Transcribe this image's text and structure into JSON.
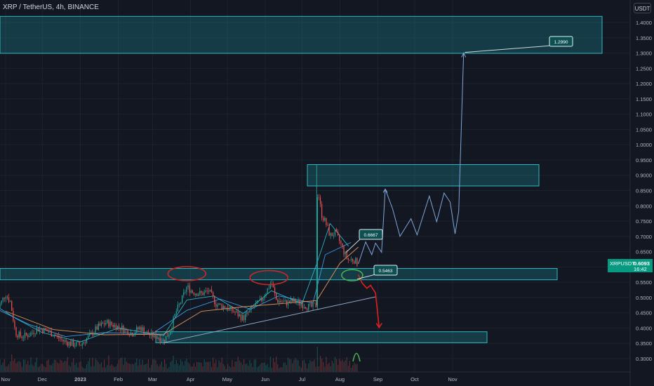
{
  "header": {
    "title": "XRP / TetherUS, 4h, BINANCE",
    "unit": "USDT"
  },
  "price_tag": {
    "symbol": "XRPUSDT",
    "value": "0.6093",
    "countdown": "16:42"
  },
  "colors": {
    "background": "#131722",
    "zone_fill": "#1b8a92",
    "zone_stroke": "#2fb8c2",
    "candle_up": "#26a69a",
    "candle_down": "#ef5350",
    "projection_up": "#7fa7d9",
    "projection_down": "#e02020",
    "circle_red": "#c62828",
    "circle_green": "#4caf50",
    "label_fill": "#0e4f52"
  },
  "chart_data": {
    "type": "line",
    "symbol": "XRP / TetherUS",
    "timeframe": "4h",
    "exchange": "BINANCE",
    "x_labels": [
      "Nov",
      "Dec",
      "2023",
      "Feb",
      "Mar",
      "Apr",
      "May",
      "Jun",
      "Jul",
      "Aug",
      "Sep",
      "Oct",
      "Nov"
    ],
    "y_ticks": [
      "1.4000",
      "1.3500",
      "1.3000",
      "1.2500",
      "1.2000",
      "1.1500",
      "1.1000",
      "1.0500",
      "1.0000",
      "0.9500",
      "0.9000",
      "0.8500",
      "0.8000",
      "0.7500",
      "0.7000",
      "0.6500",
      "0.6000",
      "0.5500",
      "0.5000",
      "0.4500",
      "0.4000",
      "0.3500",
      "0.3000"
    ],
    "y_range": [
      0.29,
      1.44
    ],
    "annotations": [
      "0.6667",
      "0.5463",
      "1.2990"
    ],
    "zones": [
      {
        "from": 1.299,
        "to": 1.42,
        "start": "Nov",
        "end": "Oct"
      },
      {
        "from": 0.865,
        "to": 0.935,
        "start": "Jul",
        "end": "Sep"
      },
      {
        "from": 0.558,
        "to": 0.595,
        "start": "Nov",
        "end": "Sep"
      },
      {
        "from": 0.352,
        "to": 0.388,
        "start": "Mar",
        "end": "Sep"
      }
    ],
    "price_series": [
      {
        "date": "2022-10-25",
        "close": 0.458
      },
      {
        "date": "2022-11-01",
        "close": 0.512
      },
      {
        "date": "2022-11-05",
        "close": 0.485
      },
      {
        "date": "2022-11-09",
        "close": 0.385
      },
      {
        "date": "2022-11-14",
        "close": 0.372
      },
      {
        "date": "2022-11-20",
        "close": 0.378
      },
      {
        "date": "2022-11-27",
        "close": 0.398
      },
      {
        "date": "2022-12-04",
        "close": 0.392
      },
      {
        "date": "2022-12-11",
        "close": 0.378
      },
      {
        "date": "2022-12-18",
        "close": 0.358
      },
      {
        "date": "2022-12-25",
        "close": 0.348
      },
      {
        "date": "2023-01-01",
        "close": 0.345
      },
      {
        "date": "2023-01-08",
        "close": 0.372
      },
      {
        "date": "2023-01-15",
        "close": 0.402
      },
      {
        "date": "2023-01-22",
        "close": 0.418
      },
      {
        "date": "2023-01-29",
        "close": 0.408
      },
      {
        "date": "2023-02-05",
        "close": 0.398
      },
      {
        "date": "2023-02-12",
        "close": 0.382
      },
      {
        "date": "2023-02-19",
        "close": 0.402
      },
      {
        "date": "2023-02-26",
        "close": 0.378
      },
      {
        "date": "2023-03-05",
        "close": 0.372
      },
      {
        "date": "2023-03-10",
        "close": 0.358
      },
      {
        "date": "2023-03-15",
        "close": 0.388
      },
      {
        "date": "2023-03-20",
        "close": 0.452
      },
      {
        "date": "2023-03-24",
        "close": 0.485
      },
      {
        "date": "2023-03-29",
        "close": 0.535
      },
      {
        "date": "2023-04-03",
        "close": 0.518
      },
      {
        "date": "2023-04-10",
        "close": 0.512
      },
      {
        "date": "2023-04-16",
        "close": 0.522
      },
      {
        "date": "2023-04-22",
        "close": 0.478
      },
      {
        "date": "2023-04-30",
        "close": 0.468
      },
      {
        "date": "2023-05-07",
        "close": 0.452
      },
      {
        "date": "2023-05-14",
        "close": 0.432
      },
      {
        "date": "2023-05-21",
        "close": 0.462
      },
      {
        "date": "2023-05-28",
        "close": 0.488
      },
      {
        "date": "2023-06-03",
        "close": 0.528
      },
      {
        "date": "2023-06-06",
        "close": 0.552
      },
      {
        "date": "2023-06-10",
        "close": 0.492
      },
      {
        "date": "2023-06-17",
        "close": 0.482
      },
      {
        "date": "2023-06-24",
        "close": 0.488
      },
      {
        "date": "2023-07-01",
        "close": 0.478
      },
      {
        "date": "2023-07-08",
        "close": 0.468
      },
      {
        "date": "2023-07-13",
        "close": 0.475
      },
      {
        "date": "2023-07-13",
        "close": 0.812
      },
      {
        "date": "2023-07-14",
        "close": 0.852
      },
      {
        "date": "2023-07-17",
        "close": 0.772
      },
      {
        "date": "2023-07-20",
        "close": 0.748
      },
      {
        "date": "2023-07-24",
        "close": 0.702
      },
      {
        "date": "2023-07-28",
        "close": 0.712
      },
      {
        "date": "2023-08-01",
        "close": 0.682
      },
      {
        "date": "2023-08-05",
        "close": 0.642
      },
      {
        "date": "2023-08-08",
        "close": 0.622
      },
      {
        "date": "2023-08-12",
        "close": 0.625
      },
      {
        "date": "2023-08-16",
        "close": 0.6093
      }
    ],
    "projection_up": [
      {
        "date": "2023-08-16",
        "value": 0.61
      },
      {
        "date": "2023-08-22",
        "value": 0.682
      },
      {
        "date": "2023-08-27",
        "value": 0.64
      },
      {
        "date": "2023-08-30",
        "value": 0.678
      },
      {
        "date": "2023-09-04",
        "value": 0.648
      },
      {
        "date": "2023-09-07",
        "value": 0.855
      },
      {
        "date": "2023-09-13",
        "value": 0.79
      },
      {
        "date": "2023-09-19",
        "value": 0.7
      },
      {
        "date": "2023-09-28",
        "value": 0.758
      },
      {
        "date": "2023-10-03",
        "value": 0.705
      },
      {
        "date": "2023-10-13",
        "value": 0.832
      },
      {
        "date": "2023-10-19",
        "value": 0.748
      },
      {
        "date": "2023-10-25",
        "value": 0.842
      },
      {
        "date": "2023-10-30",
        "value": 0.812
      },
      {
        "date": "2023-11-03",
        "value": 0.708
      },
      {
        "date": "2023-11-06",
        "value": 0.782
      },
      {
        "date": "2023-11-10",
        "value": 1.3
      }
    ],
    "projection_down": [
      {
        "date": "2023-08-16",
        "value": 0.575
      },
      {
        "date": "2023-08-19",
        "value": 0.548
      },
      {
        "date": "2023-08-23",
        "value": 0.53
      },
      {
        "date": "2023-08-26",
        "value": 0.54
      },
      {
        "date": "2023-08-30",
        "value": 0.515
      },
      {
        "date": "2023-09-02",
        "value": 0.402
      }
    ],
    "trendline": [
      {
        "date": "2023-03-10",
        "value": 0.352
      },
      {
        "date": "2023-08-30",
        "value": 0.502
      }
    ],
    "moving_averages": [
      {
        "period": "fast",
        "values": [
          {
            "date": "2022-10-25",
            "value": 0.47
          },
          {
            "date": "2022-11-10",
            "value": 0.43
          },
          {
            "date": "2022-12-01",
            "value": 0.385
          },
          {
            "date": "2023-01-01",
            "value": 0.355
          },
          {
            "date": "2023-02-01",
            "value": 0.4
          },
          {
            "date": "2023-03-10",
            "value": 0.375
          },
          {
            "date": "2023-03-29",
            "value": 0.492
          },
          {
            "date": "2023-04-20",
            "value": 0.505
          },
          {
            "date": "2023-05-14",
            "value": 0.448
          },
          {
            "date": "2023-06-06",
            "value": 0.522
          },
          {
            "date": "2023-07-01",
            "value": 0.48
          },
          {
            "date": "2023-07-13",
            "value": 0.61
          },
          {
            "date": "2023-07-24",
            "value": 0.742
          },
          {
            "date": "2023-08-08",
            "value": 0.668
          }
        ]
      },
      {
        "period": "medium",
        "values": [
          {
            "date": "2022-10-25",
            "value": 0.462
          },
          {
            "date": "2022-11-20",
            "value": 0.412
          },
          {
            "date": "2022-12-20",
            "value": 0.372
          },
          {
            "date": "2023-01-20",
            "value": 0.385
          },
          {
            "date": "2023-03-01",
            "value": 0.382
          },
          {
            "date": "2023-03-29",
            "value": 0.458
          },
          {
            "date": "2023-04-25",
            "value": 0.495
          },
          {
            "date": "2023-05-20",
            "value": 0.462
          },
          {
            "date": "2023-06-12",
            "value": 0.505
          },
          {
            "date": "2023-07-10",
            "value": 0.482
          },
          {
            "date": "2023-07-20",
            "value": 0.64
          },
          {
            "date": "2023-08-10",
            "value": 0.68
          }
        ]
      },
      {
        "period": "slow",
        "values": [
          {
            "date": "2022-11-01",
            "value": 0.455
          },
          {
            "date": "2022-12-10",
            "value": 0.395
          },
          {
            "date": "2023-01-20",
            "value": 0.378
          },
          {
            "date": "2023-03-10",
            "value": 0.38
          },
          {
            "date": "2023-04-10",
            "value": 0.455
          },
          {
            "date": "2023-05-15",
            "value": 0.47
          },
          {
            "date": "2023-06-20",
            "value": 0.482
          },
          {
            "date": "2023-07-13",
            "value": 0.49
          },
          {
            "date": "2023-08-01",
            "value": 0.612
          },
          {
            "date": "2023-08-16",
            "value": 0.665
          }
        ]
      }
    ],
    "highlight_circles": [
      {
        "color": "red",
        "date": "2023-03-29",
        "value": 0.578
      },
      {
        "color": "red",
        "date": "2023-06-04",
        "value": 0.565
      },
      {
        "color": "green",
        "date": "2023-08-11",
        "value": 0.573
      }
    ],
    "grid": true
  }
}
